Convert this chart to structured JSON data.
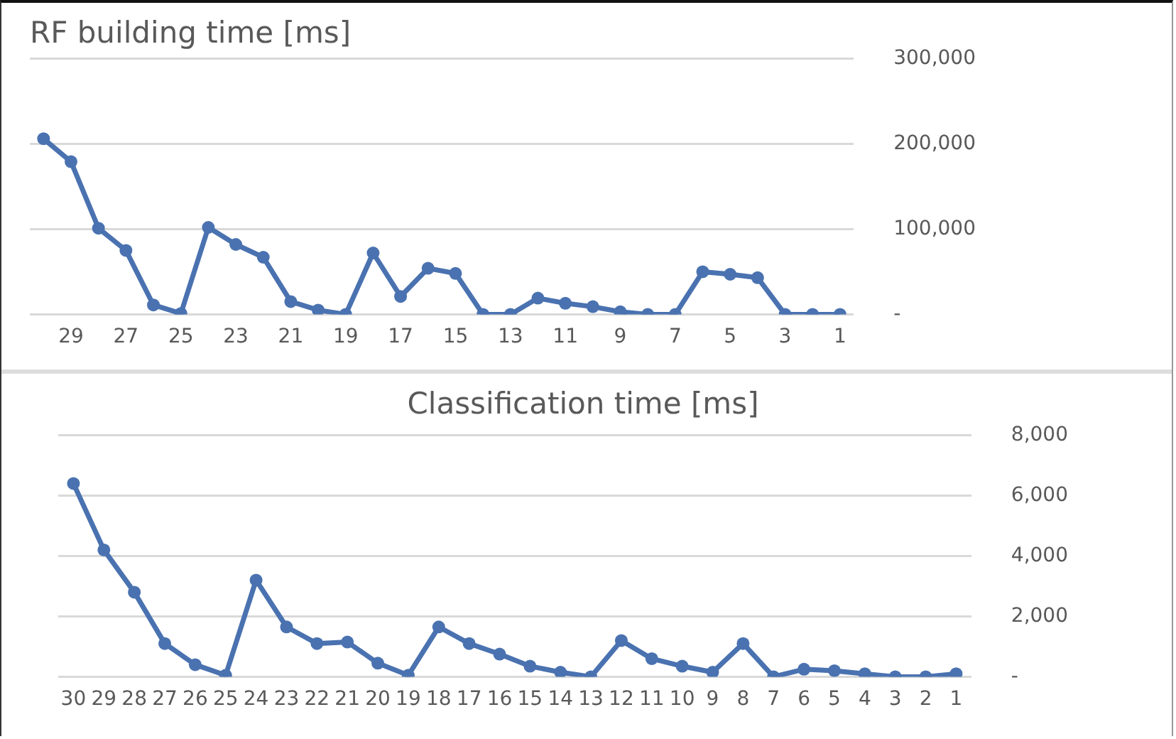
{
  "chart_data": [
    {
      "type": "line",
      "title": "RF building time [ms]",
      "categories": [
        null,
        "29",
        null,
        "27",
        null,
        "25",
        null,
        "23",
        null,
        "21",
        null,
        "19",
        null,
        "17",
        null,
        "15",
        null,
        "13",
        null,
        "11",
        null,
        "9",
        null,
        "7",
        null,
        "5",
        null,
        "3",
        null,
        "1"
      ],
      "values": [
        206000,
        179000,
        101000,
        75000,
        11000,
        1000,
        102000,
        82000,
        67000,
        15000,
        5000,
        0,
        72000,
        21000,
        54000,
        48000,
        0,
        0,
        19000,
        13000,
        9000,
        3000,
        0,
        0,
        50000,
        47000,
        43000,
        0,
        0,
        0
      ],
      "color": "#4a72b0",
      "ylim": [
        0,
        300000
      ],
      "yticks": [
        {
          "value": 0,
          "label": "-"
        },
        {
          "value": 100000,
          "label": "100,000"
        },
        {
          "value": 200000,
          "label": "200,000"
        },
        {
          "value": 300000,
          "label": "300,000"
        }
      ],
      "grid": "y",
      "marker": "circle"
    },
    {
      "type": "line",
      "title": "Classification time [ms]",
      "categories": [
        "30",
        "29",
        "28",
        "27",
        "26",
        "25",
        "24",
        "23",
        "22",
        "21",
        "20",
        "19",
        "18",
        "17",
        "16",
        "15",
        "14",
        "13",
        "12",
        "11",
        "10",
        "9",
        "8",
        "7",
        "6",
        "5",
        "4",
        "3",
        "2",
        "1"
      ],
      "values": [
        6400,
        4200,
        2800,
        1100,
        400,
        50,
        3200,
        1650,
        1100,
        1150,
        450,
        50,
        1650,
        1100,
        750,
        350,
        150,
        0,
        1200,
        600,
        350,
        150,
        1100,
        0,
        250,
        200,
        100,
        0,
        0,
        100
      ],
      "color": "#4a72b0",
      "ylim": [
        0,
        8000
      ],
      "yticks": [
        {
          "value": 0,
          "label": "-"
        },
        {
          "value": 2000,
          "label": "2,000"
        },
        {
          "value": 4000,
          "label": "4,000"
        },
        {
          "value": 6000,
          "label": "6,000"
        },
        {
          "value": 8000,
          "label": "8,000"
        }
      ],
      "grid": "y",
      "marker": "circle"
    }
  ]
}
